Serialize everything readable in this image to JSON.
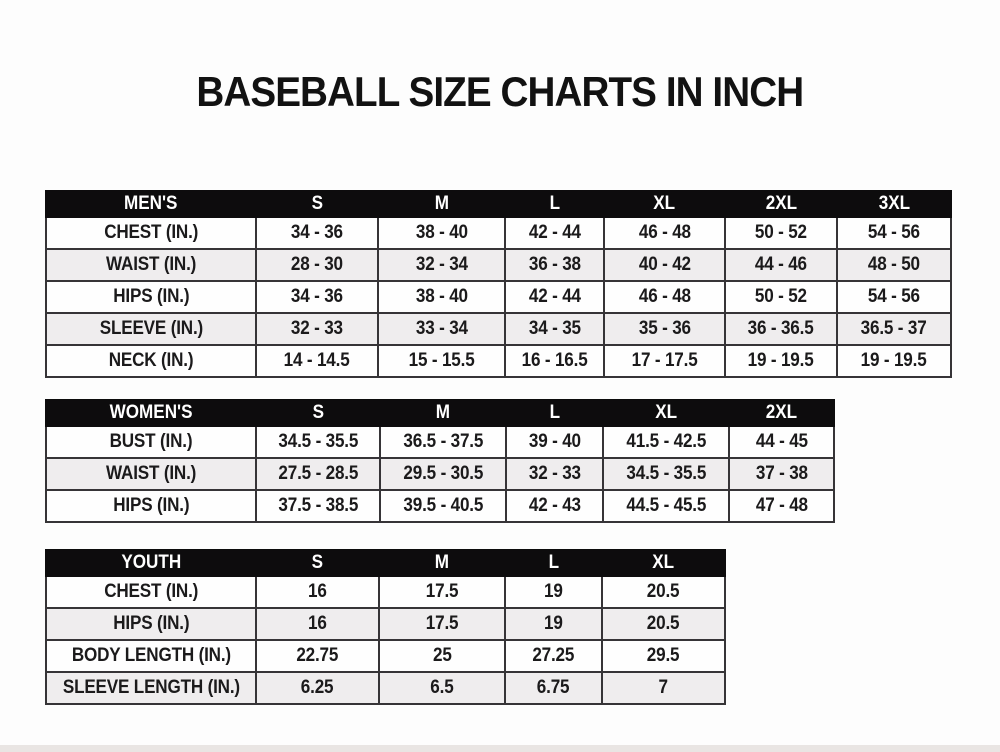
{
  "page": {
    "title": "BASEBALL SIZE CHARTS IN INCH"
  },
  "colors": {
    "header_bg": "#0d0c0d",
    "header_text": "#ffffff",
    "row_bg": "#fefefe",
    "row_alt_bg": "#efedee",
    "border": "#363437",
    "text": "#1b1a1b"
  },
  "tables": [
    {
      "id": "mens",
      "title": "MEN'S",
      "sizes": [
        "S",
        "M",
        "L",
        "XL",
        "2XL",
        "3XL"
      ],
      "rows": [
        {
          "label": "CHEST (IN.)",
          "values": [
            "34 - 36",
            "38 - 40",
            "42 - 44",
            "46 - 48",
            "50 - 52",
            "54 - 56"
          ]
        },
        {
          "label": "WAIST (IN.)",
          "values": [
            "28 - 30",
            "32 - 34",
            "36 - 38",
            "40 - 42",
            "44 - 46",
            "48 - 50"
          ]
        },
        {
          "label": "HIPS (IN.)",
          "values": [
            "34 - 36",
            "38 - 40",
            "42 - 44",
            "46 - 48",
            "50 - 52",
            "54 - 56"
          ]
        },
        {
          "label": "SLEEVE (IN.)",
          "values": [
            "32 - 33",
            "33 - 34",
            "34 - 35",
            "35 - 36",
            "36 - 36.5",
            "36.5 - 37"
          ]
        },
        {
          "label": "NECK (IN.)",
          "values": [
            "14 - 14.5",
            "15 - 15.5",
            "16 - 16.5",
            "17 - 17.5",
            "19 - 19.5",
            "19 - 19.5"
          ]
        }
      ]
    },
    {
      "id": "womens",
      "title": "WOMEN'S",
      "sizes": [
        "S",
        "M",
        "L",
        "XL",
        "2XL"
      ],
      "rows": [
        {
          "label": "BUST (IN.)",
          "values": [
            "34.5 - 35.5",
            "36.5 - 37.5",
            "39 - 40",
            "41.5 - 42.5",
            "44 - 45"
          ]
        },
        {
          "label": "WAIST (IN.)",
          "values": [
            "27.5 - 28.5",
            "29.5 - 30.5",
            "32 - 33",
            "34.5 - 35.5",
            "37 - 38"
          ]
        },
        {
          "label": "HIPS (IN.)",
          "values": [
            "37.5 - 38.5",
            "39.5 - 40.5",
            "42 - 43",
            "44.5 - 45.5",
            "47 - 48"
          ]
        }
      ]
    },
    {
      "id": "youth",
      "title": "YOUTH",
      "sizes": [
        "S",
        "M",
        "L",
        "XL"
      ],
      "rows": [
        {
          "label": "CHEST (IN.)",
          "values": [
            "16",
            "17.5",
            "19",
            "20.5"
          ]
        },
        {
          "label": "HIPS (IN.)",
          "values": [
            "16",
            "17.5",
            "19",
            "20.5"
          ]
        },
        {
          "label": "BODY LENGTH (IN.)",
          "values": [
            "22.75",
            "25",
            "27.25",
            "29.5"
          ]
        },
        {
          "label": "SLEEVE LENGTH (IN.)",
          "values": [
            "6.25",
            "6.5",
            "6.75",
            "7"
          ]
        }
      ]
    }
  ]
}
